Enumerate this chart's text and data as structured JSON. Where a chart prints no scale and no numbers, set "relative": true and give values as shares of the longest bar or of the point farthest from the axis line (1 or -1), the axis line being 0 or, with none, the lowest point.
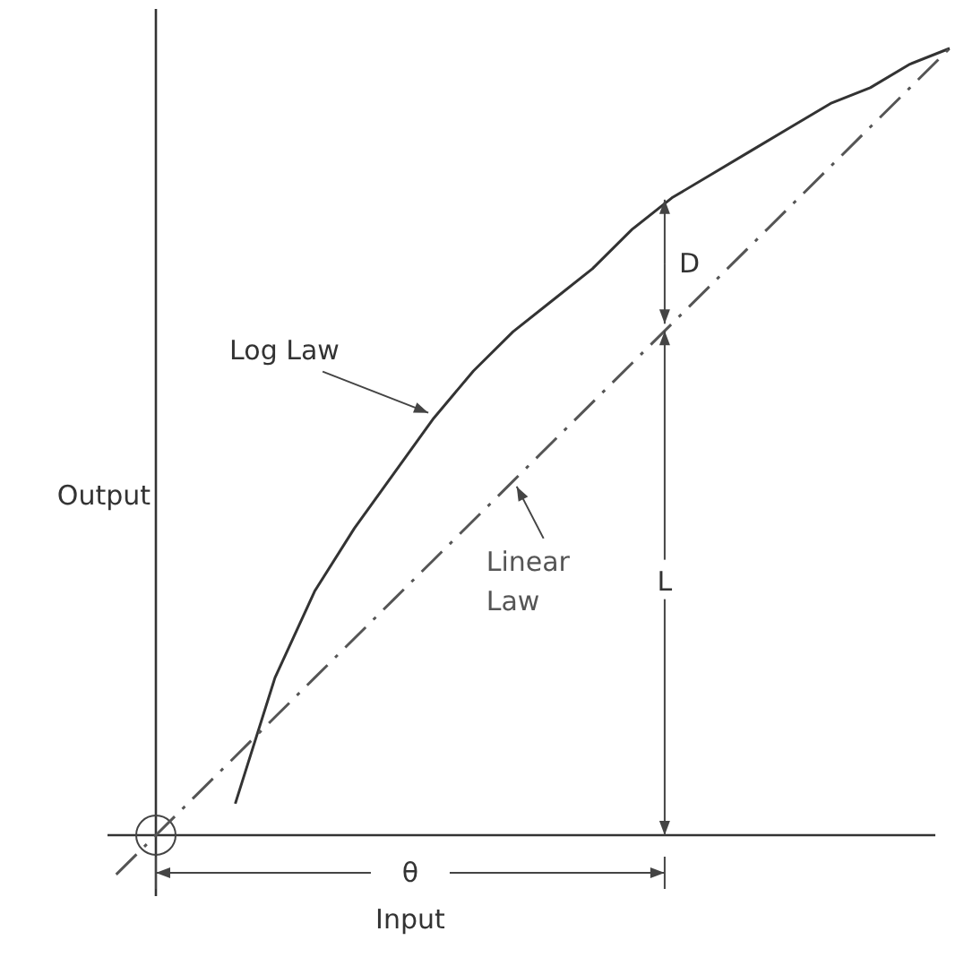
{
  "chart_data": {
    "type": "line",
    "relative": true,
    "xlabel": "Input",
    "ylabel": "Output",
    "categories": [
      null,
      null,
      null,
      null,
      null,
      null,
      null,
      null,
      null,
      null,
      null,
      null,
      null,
      null,
      null,
      null,
      null,
      null,
      null,
      null,
      null,
      null
    ],
    "series": [
      {
        "name": "Log Law",
        "color": "#333333",
        "line_style": "solid",
        "values": [
          null,
          null,
          null,
          0.04,
          0.2,
          0.31,
          0.39,
          0.46,
          0.53,
          0.59,
          0.64,
          0.68,
          0.72,
          0.77,
          0.81,
          0.84,
          0.87,
          0.9,
          0.93,
          0.95,
          0.98,
          1.0
        ]
      },
      {
        "name": "Linear Law",
        "color": "#555555",
        "line_style": "dashed",
        "values": [
          -0.05,
          0,
          0.05,
          0.1,
          0.15,
          0.2,
          0.25,
          0.3,
          0.35,
          0.4,
          0.45,
          0.5,
          0.55,
          0.6,
          0.65,
          0.7,
          0.75,
          0.8,
          0.85,
          0.9,
          0.95,
          1.0
        ]
      }
    ],
    "annotations": [
      "D",
      "L",
      "θ"
    ],
    "grid": false,
    "marker": "none"
  }
}
